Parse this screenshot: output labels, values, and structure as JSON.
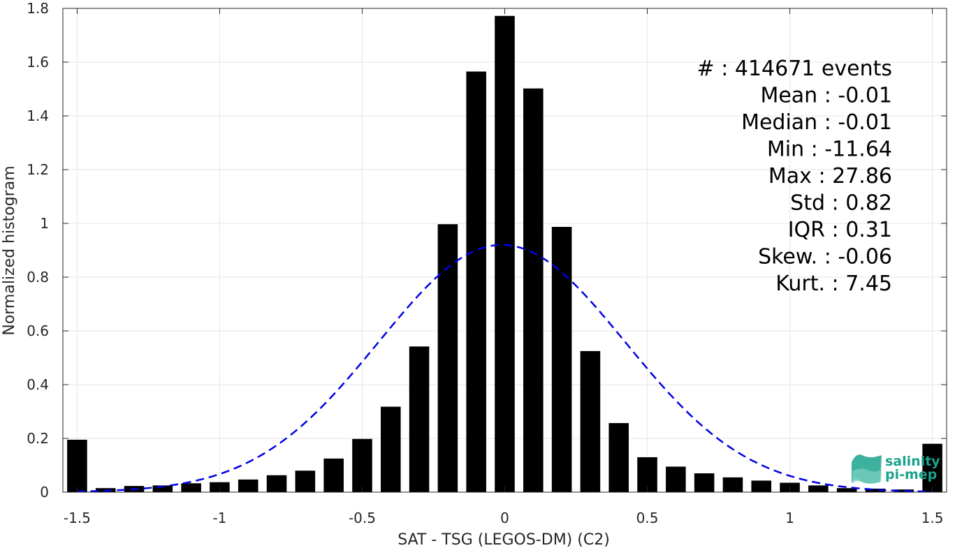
{
  "chart_data": {
    "type": "bar",
    "xlabel": "SAT - TSG (LEGOS-DM) (C2)",
    "ylabel": "Normalized histogram",
    "xlim": [
      -1.55,
      1.55
    ],
    "ylim": [
      0,
      1.8
    ],
    "xticks": [
      -1.5,
      -1,
      -0.5,
      0,
      0.5,
      1,
      1.5
    ],
    "xtick_labels": [
      "-1.5",
      "-1",
      "-0.5",
      "0",
      "0.5",
      "1",
      "1.5"
    ],
    "yticks": [
      0,
      0.2,
      0.4,
      0.6,
      0.8,
      1,
      1.2,
      1.4,
      1.6,
      1.8
    ],
    "ytick_labels": [
      "0",
      "0.2",
      "0.4",
      "0.6",
      "0.8",
      "1",
      "1.2",
      "1.4",
      "1.6",
      "1.8"
    ],
    "grid": true,
    "bar_width": 0.07,
    "bars": {
      "x": [
        -1.5,
        -1.4,
        -1.3,
        -1.2,
        -1.1,
        -1.0,
        -0.9,
        -0.8,
        -0.7,
        -0.6,
        -0.5,
        -0.4,
        -0.3,
        -0.2,
        -0.1,
        0.0,
        0.1,
        0.2,
        0.3,
        0.4,
        0.5,
        0.6,
        0.7,
        0.8,
        0.9,
        1.0,
        1.1,
        1.2,
        1.3,
        1.4,
        1.5
      ],
      "values": [
        0.195,
        0.015,
        0.023,
        0.025,
        0.033,
        0.037,
        0.047,
        0.063,
        0.08,
        0.125,
        0.198,
        0.318,
        0.542,
        0.997,
        1.565,
        1.772,
        1.502,
        0.987,
        0.525,
        0.257,
        0.13,
        0.095,
        0.07,
        0.055,
        0.043,
        0.035,
        0.025,
        0.015,
        0.013,
        0.01,
        0.18
      ],
      "color": "#000000"
    },
    "fit_curve": {
      "style": "dashed",
      "color": "#0000e6",
      "mean": -0.01,
      "std": 0.433,
      "peak": 0.92,
      "x_range": [
        -1.5,
        1.5
      ]
    },
    "annotations": [
      "#   : 414671 events",
      "Mean : -0.01",
      "Median : -0.01",
      "Min : -11.64",
      "Max : 27.86",
      "Std : 0.82",
      "IQR : 0.31",
      "Skew. : -0.06",
      "Kurt. : 7.45"
    ]
  },
  "logo": {
    "line1": "salinity",
    "line2": "pi-mep",
    "color": "#1aa38c"
  },
  "colors": {
    "grid": "#e6e6e6",
    "axis": "#262626",
    "background": "#ffffff"
  }
}
